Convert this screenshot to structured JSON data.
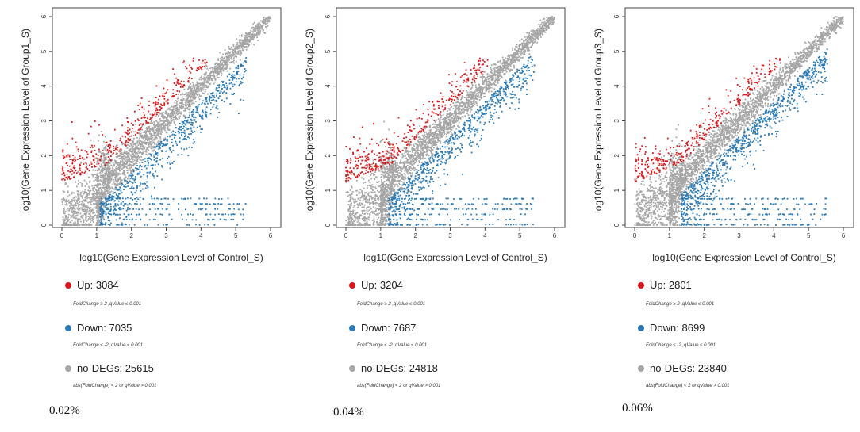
{
  "colors": {
    "up": "#d7191c",
    "down": "#2c7bb6",
    "none": "#a6a6a6"
  },
  "legend": {
    "up_label": "Up",
    "down_label": "Down",
    "none_label": "no-DEGs",
    "up_condition": "FoldChange ≥ 2 ,qValue ≤ 0.001",
    "down_condition": "FoldChange ≤ -2 ,qValue ≤ 0.001",
    "none_condition": "abs(FoldChange) < 2  or qValue > 0.001"
  },
  "chart_data": [
    {
      "type": "scatter",
      "xlabel": "log10(Gene Expression Level of Control_S)",
      "ylabel": "log10(Gene Expression Level of Group1_S)",
      "xlim": [
        0,
        6
      ],
      "ylim": [
        0,
        6
      ],
      "xticks": [
        "0",
        "1",
        "2",
        "3",
        "4",
        "5",
        "6"
      ],
      "yticks": [
        "0",
        "1",
        "2",
        "3",
        "4",
        "5",
        "6"
      ],
      "series": [
        {
          "name": "Up",
          "count": 3084
        },
        {
          "name": "Down",
          "count": 7035
        },
        {
          "name": "no-DEGs",
          "count": 25615
        }
      ],
      "up_text": "3084",
      "down_text": "7035",
      "none_text": "25615",
      "concentration": "0.02%"
    },
    {
      "type": "scatter",
      "xlabel": "log10(Gene Expression Level of Control_S)",
      "ylabel": "log10(Gene Expression Level of Group2_S)",
      "xlim": [
        0,
        6
      ],
      "ylim": [
        0,
        6
      ],
      "xticks": [
        "0",
        "1",
        "2",
        "3",
        "4",
        "5",
        "6"
      ],
      "yticks": [
        "0",
        "1",
        "2",
        "3",
        "4",
        "5",
        "6"
      ],
      "series": [
        {
          "name": "Up",
          "count": 3204
        },
        {
          "name": "Down",
          "count": 7687
        },
        {
          "name": "no-DEGs",
          "count": 24818
        }
      ],
      "up_text": "3204",
      "down_text": "7687",
      "none_text": "24818",
      "concentration": "0.04%"
    },
    {
      "type": "scatter",
      "xlabel": "log10(Gene Expression Level of Control_S)",
      "ylabel": "log10(Gene Expression Level of Group3_S)",
      "xlim": [
        0,
        6
      ],
      "ylim": [
        0,
        6
      ],
      "xticks": [
        "0",
        "1",
        "2",
        "3",
        "4",
        "5",
        "6"
      ],
      "yticks": [
        "0",
        "1",
        "2",
        "3",
        "4",
        "5",
        "6"
      ],
      "series": [
        {
          "name": "Up",
          "count": 2801
        },
        {
          "name": "Down",
          "count": 8699
        },
        {
          "name": "no-DEGs",
          "count": 23840
        }
      ],
      "up_text": "2801",
      "down_text": "8699",
      "none_text": "23840",
      "concentration": "0.06%"
    }
  ]
}
